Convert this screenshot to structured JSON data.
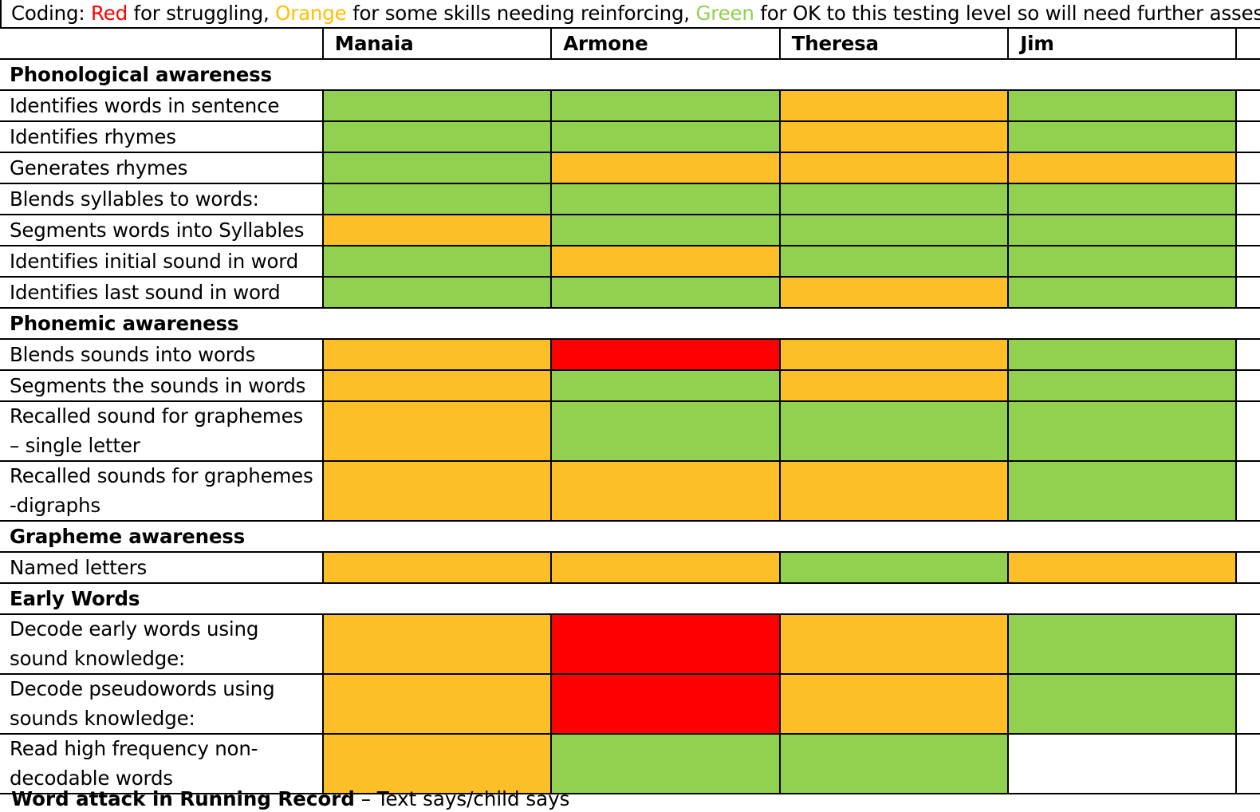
{
  "coding": {
    "prefix": "Coding: ",
    "red_word": "Red",
    "red_desc": " for struggling, ",
    "orange_word": "Orange",
    "orange_desc": " for some skills needing reinforcing, ",
    "green_word": "Green",
    "green_desc": " for OK to this testing level so will need further assessm",
    "colors": {
      "red": "#ff0000",
      "orange": "#ffc000",
      "green": "#92d050"
    }
  },
  "students": [
    "Manaia",
    "Armone",
    "Theresa",
    "Jim"
  ],
  "sections": [
    {
      "title": "Phonological awareness",
      "rows": [
        {
          "label": "Identifies words in sentence",
          "status": [
            "green",
            "green",
            "orange",
            "green"
          ]
        },
        {
          "label": "Identifies rhymes",
          "status": [
            "green",
            "green",
            "orange",
            "green"
          ]
        },
        {
          "label": "Generates rhymes",
          "status": [
            "green",
            "orange",
            "orange",
            "orange"
          ]
        },
        {
          "label": "Blends syllables to words:",
          "status": [
            "green",
            "green",
            "green",
            "green"
          ]
        },
        {
          "label": "Segments words into Syllables",
          "status": [
            "orange",
            "green",
            "green",
            "green"
          ]
        },
        {
          "label": "Identifies initial sound in word",
          "status": [
            "green",
            "orange",
            "green",
            "green"
          ]
        },
        {
          "label": "Identifies last sound in word",
          "status": [
            "green",
            "green",
            "orange",
            "green"
          ]
        }
      ]
    },
    {
      "title": "Phonemic awareness",
      "rows": [
        {
          "label": "Blends sounds into words",
          "status": [
            "orange",
            "red",
            "orange",
            "green"
          ]
        },
        {
          "label": "Segments the sounds in words",
          "status": [
            "orange",
            "green",
            "orange",
            "green"
          ]
        },
        {
          "label_line1": "Recalled sound for graphemes",
          "label_line2": "– single letter",
          "status": [
            "orange",
            "green",
            "green",
            "green"
          ]
        },
        {
          "label_line1": "Recalled sounds for graphemes",
          "label_line2": "-digraphs",
          "status": [
            "orange",
            "orange",
            "orange",
            "green"
          ]
        }
      ]
    },
    {
      "title": "Grapheme awareness",
      "rows": [
        {
          "label": "Named letters",
          "status": [
            "orange",
            "orange",
            "green",
            "orange"
          ]
        }
      ]
    },
    {
      "title": "Early Words",
      "rows": [
        {
          "label_line1": "Decode early words using",
          "label_line2": "sound knowledge:",
          "status": [
            "orange",
            "red",
            "orange",
            "green"
          ]
        },
        {
          "label_line1": "Decode pseudowords using",
          "label_line2": "sounds knowledge:",
          "status": [
            "orange",
            "red",
            "orange",
            "green"
          ]
        },
        {
          "label_line1": "Read high frequency non-",
          "label_line2": "decodable words",
          "status": [
            "orange",
            "green",
            "green",
            "blank"
          ]
        }
      ]
    }
  ],
  "footer_cut": {
    "bold": "Word attack in Running Record",
    "rest": " – Text says/child says"
  }
}
